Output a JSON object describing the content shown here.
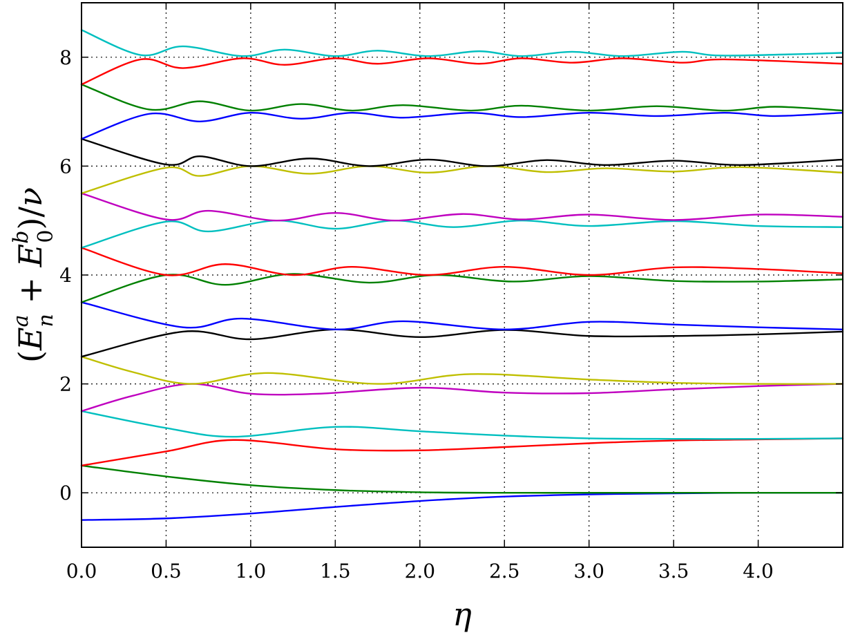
{
  "chart_data": {
    "type": "line",
    "title": "",
    "xlabel": "η",
    "ylabel": "(E_n^a + E_0^b)/ν",
    "ylabel_parts": {
      "open": "(",
      "e1": "E",
      "sup1": "a",
      "sub1": "n",
      "plus": " + ",
      "e2": "E",
      "sup2": "b",
      "sub2": "0",
      "close": ")/",
      "nu": "ν"
    },
    "xlim": [
      0,
      4.5
    ],
    "ylim": [
      -1,
      9
    ],
    "xticks": [
      0,
      0.5,
      1,
      1.5,
      2,
      2.5,
      3,
      3.5,
      4
    ],
    "xtick_labels": [
      "0.0",
      "0.5",
      "1.0",
      "1.5",
      "2.0",
      "2.5",
      "3.0",
      "3.5",
      "4.0"
    ],
    "yticks": [
      0,
      2,
      4,
      6,
      8
    ],
    "ytick_labels": [
      "0",
      "2",
      "4",
      "6",
      "8"
    ],
    "grid": "dotted",
    "legend": "none",
    "series": [
      {
        "color": "#0000ff",
        "x": [
          0,
          0.5,
          1,
          1.5,
          2,
          2.5,
          3,
          3.5,
          4,
          4.5
        ],
        "y": [
          -0.5,
          -0.47,
          -0.38,
          -0.26,
          -0.15,
          -0.07,
          -0.03,
          -0.01,
          0.0,
          0.0
        ]
      },
      {
        "color": "#008000",
        "x": [
          0,
          0.5,
          1,
          1.5,
          2,
          2.5,
          3,
          3.5,
          4,
          4.5
        ],
        "y": [
          0.5,
          0.3,
          0.14,
          0.05,
          0.01,
          0.0,
          0.0,
          0.0,
          0.0,
          0.0
        ]
      },
      {
        "color": "#ff0000",
        "x": [
          0,
          0.5,
          0.9,
          1.5,
          2,
          2.5,
          3,
          3.5,
          4,
          4.5
        ],
        "y": [
          0.5,
          0.76,
          0.97,
          0.8,
          0.78,
          0.84,
          0.91,
          0.96,
          0.98,
          1.0
        ]
      },
      {
        "color": "#00bfbf",
        "x": [
          0,
          0.5,
          0.9,
          1.5,
          2,
          2.5,
          3,
          3.5,
          4,
          4.5
        ],
        "y": [
          1.5,
          1.19,
          1.03,
          1.21,
          1.13,
          1.05,
          1.0,
          0.99,
          0.99,
          1.0
        ]
      },
      {
        "color": "#bf00bf",
        "x": [
          0,
          0.3,
          0.65,
          1,
          1.4,
          2,
          2.5,
          3,
          3.5,
          4,
          4.5
        ],
        "y": [
          1.5,
          1.78,
          2.0,
          1.82,
          1.82,
          1.93,
          1.84,
          1.83,
          1.9,
          1.96,
          2.0
        ]
      },
      {
        "color": "#bfbf00",
        "x": [
          0,
          0.3,
          0.65,
          1.1,
          1.75,
          2.3,
          3,
          3.5,
          4,
          4.5
        ],
        "y": [
          2.5,
          2.22,
          2.0,
          2.2,
          2.0,
          2.18,
          2.08,
          2.02,
          2.0,
          2.0
        ]
      },
      {
        "color": "#000000",
        "x": [
          0,
          0.6,
          1,
          1.5,
          2,
          2.5,
          3,
          3.5,
          4,
          4.5
        ],
        "y": [
          2.5,
          2.96,
          2.82,
          3.0,
          2.86,
          2.99,
          2.88,
          2.88,
          2.91,
          2.96
        ]
      },
      {
        "color": "#0000ff",
        "x": [
          0,
          0.6,
          0.95,
          1.5,
          1.9,
          2.5,
          3,
          3.5,
          4,
          4.5
        ],
        "y": [
          3.5,
          3.04,
          3.2,
          3.0,
          3.15,
          3.0,
          3.14,
          3.09,
          3.04,
          3.0
        ]
      },
      {
        "color": "#008000",
        "x": [
          0,
          0.5,
          0.85,
          1.25,
          1.7,
          2.1,
          2.55,
          3,
          3.5,
          4,
          4.5
        ],
        "y": [
          3.5,
          4.0,
          3.82,
          4.02,
          3.86,
          4.0,
          3.88,
          3.98,
          3.89,
          3.88,
          3.92
        ]
      },
      {
        "color": "#ff0000",
        "x": [
          0,
          0.5,
          0.85,
          1.25,
          1.6,
          2.05,
          2.5,
          3,
          3.5,
          4,
          4.5
        ],
        "y": [
          4.5,
          4.0,
          4.2,
          4.0,
          4.15,
          4.0,
          4.15,
          4.0,
          4.14,
          4.11,
          4.03
        ]
      },
      {
        "color": "#00bfbf",
        "x": [
          0,
          0.5,
          0.75,
          1.15,
          1.5,
          1.85,
          2.2,
          2.6,
          3,
          3.5,
          4,
          4.5
        ],
        "y": [
          4.5,
          4.98,
          4.8,
          5.0,
          4.85,
          5.0,
          4.88,
          5.0,
          4.9,
          4.99,
          4.9,
          4.88
        ]
      },
      {
        "color": "#bf00bf",
        "x": [
          0,
          0.5,
          0.75,
          1.15,
          1.5,
          1.85,
          2.25,
          2.6,
          3,
          3.5,
          4,
          4.5
        ],
        "y": [
          5.5,
          5.02,
          5.18,
          5.0,
          5.14,
          5.0,
          5.12,
          5.02,
          5.11,
          5.01,
          5.11,
          5.07
        ]
      },
      {
        "color": "#bfbf00",
        "x": [
          0,
          0.5,
          0.7,
          1,
          1.35,
          1.7,
          2.05,
          2.4,
          2.75,
          3.1,
          3.5,
          3.9,
          4.5
        ],
        "y": [
          5.5,
          5.97,
          5.82,
          6.0,
          5.86,
          6.0,
          5.88,
          6.0,
          5.89,
          5.96,
          5.9,
          5.98,
          5.88
        ]
      },
      {
        "color": "#000000",
        "x": [
          0,
          0.5,
          0.7,
          1,
          1.35,
          1.7,
          2.05,
          2.4,
          2.75,
          3.1,
          3.5,
          3.9,
          4.5
        ],
        "y": [
          6.5,
          6.03,
          6.18,
          6.0,
          6.14,
          6.0,
          6.12,
          6.0,
          6.11,
          6.02,
          6.1,
          6.02,
          6.12
        ]
      },
      {
        "color": "#0000ff",
        "x": [
          0,
          0.4,
          0.7,
          1.0,
          1.3,
          1.6,
          1.9,
          2.3,
          2.6,
          3.0,
          3.4,
          3.8,
          4.1,
          4.5
        ],
        "y": [
          6.5,
          6.96,
          6.82,
          6.98,
          6.87,
          6.98,
          6.89,
          6.98,
          6.9,
          6.98,
          6.92,
          6.98,
          6.92,
          6.98
        ]
      },
      {
        "color": "#008000",
        "x": [
          0,
          0.4,
          0.7,
          1.0,
          1.3,
          1.6,
          1.9,
          2.3,
          2.6,
          3.0,
          3.4,
          3.8,
          4.1,
          4.5
        ],
        "y": [
          7.5,
          7.04,
          7.19,
          7.02,
          7.14,
          7.02,
          7.12,
          7.02,
          7.11,
          7.02,
          7.1,
          7.02,
          7.09,
          7.02
        ]
      },
      {
        "color": "#ff0000",
        "x": [
          0,
          0.35,
          0.6,
          0.95,
          1.2,
          1.5,
          1.75,
          2.05,
          2.35,
          2.6,
          2.9,
          3.2,
          3.55,
          3.8,
          4.5
        ],
        "y": [
          7.5,
          7.96,
          7.8,
          7.98,
          7.86,
          7.98,
          7.88,
          7.98,
          7.88,
          7.98,
          7.9,
          7.98,
          7.9,
          7.96,
          7.88
        ]
      },
      {
        "color": "#00bfbf",
        "x": [
          0,
          0.35,
          0.6,
          0.95,
          1.2,
          1.5,
          1.75,
          2.05,
          2.35,
          2.6,
          2.9,
          3.2,
          3.55,
          3.8,
          4.5
        ],
        "y": [
          8.5,
          8.04,
          8.2,
          8.02,
          8.14,
          8.02,
          8.12,
          8.02,
          8.11,
          8.02,
          8.1,
          8.02,
          8.1,
          8.03,
          8.08
        ]
      }
    ]
  }
}
